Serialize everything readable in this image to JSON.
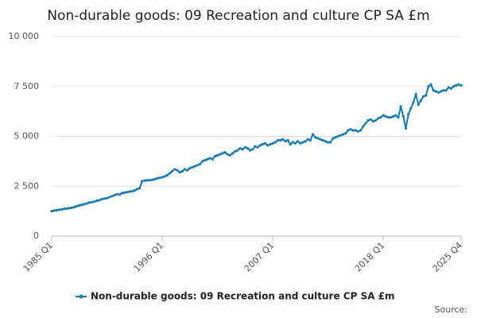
{
  "chart_data": {
    "type": "line",
    "title": "Non-durable goods: 09 Recreation and culture CP SA £m",
    "source": "Source:",
    "categories": [
      "1985 Q1",
      null,
      null,
      null,
      null,
      null,
      null,
      null,
      null,
      null,
      null,
      null,
      null,
      null,
      null,
      null,
      null,
      null,
      null,
      null,
      null,
      null,
      null,
      null,
      null,
      null,
      null,
      null,
      null,
      null,
      null,
      null,
      null,
      null,
      null,
      null,
      null,
      null,
      null,
      null,
      null,
      null,
      null,
      null,
      "1996 Q1",
      null,
      null,
      null,
      null,
      null,
      null,
      null,
      null,
      null,
      null,
      null,
      null,
      null,
      null,
      null,
      null,
      null,
      null,
      null,
      null,
      null,
      null,
      null,
      null,
      null,
      null,
      null,
      null,
      null,
      null,
      null,
      null,
      null,
      null,
      null,
      null,
      null,
      null,
      null,
      null,
      null,
      null,
      null,
      "2007 Q1",
      null,
      null,
      null,
      null,
      null,
      null,
      null,
      null,
      null,
      null,
      null,
      null,
      null,
      null,
      null,
      null,
      null,
      null,
      null,
      null,
      null,
      null,
      null,
      null,
      null,
      null,
      null,
      null,
      null,
      null,
      null,
      null,
      null,
      null,
      null,
      null,
      null,
      null,
      null,
      null,
      null,
      null,
      null,
      "2018 Q1",
      null,
      null,
      null,
      null,
      null,
      null,
      null,
      null,
      null,
      null,
      null,
      null,
      null,
      null,
      null,
      null,
      null,
      null,
      null,
      null,
      null,
      null,
      null,
      null,
      null,
      null,
      null,
      null,
      null,
      null,
      "2025 Q4"
    ],
    "series": [
      {
        "name": "Non-durable goods: 09 Recreation and culture CP SA £m",
        "color": "#0f7bbd",
        "values": [
          1250,
          1280,
          1300,
          1320,
          1340,
          1370,
          1380,
          1400,
          1420,
          1450,
          1500,
          1540,
          1570,
          1600,
          1640,
          1680,
          1700,
          1730,
          1780,
          1800,
          1850,
          1880,
          1900,
          1950,
          2000,
          2050,
          2100,
          2080,
          2150,
          2180,
          2200,
          2230,
          2250,
          2280,
          2350,
          2400,
          2750,
          2780,
          2800,
          2800,
          2820,
          2850,
          2900,
          2920,
          2950,
          3000,
          3050,
          3150,
          3250,
          3350,
          3300,
          3200,
          3250,
          3350,
          3300,
          3400,
          3450,
          3500,
          3550,
          3600,
          3750,
          3800,
          3850,
          3900,
          3850,
          4000,
          4050,
          4100,
          4150,
          4200,
          4100,
          4050,
          4150,
          4250,
          4300,
          4400,
          4350,
          4450,
          4400,
          4300,
          4350,
          4500,
          4450,
          4550,
          4600,
          4650,
          4550,
          4600,
          4650,
          4700,
          4800,
          4800,
          4850,
          4750,
          4800,
          4600,
          4700,
          4650,
          4750,
          4650,
          4700,
          4750,
          4850,
          4800,
          5100,
          4950,
          4900,
          4850,
          4800,
          4750,
          4700,
          4700,
          4900,
          4950,
          5000,
          5050,
          5100,
          5150,
          5300,
          5350,
          5300,
          5300,
          5250,
          5300,
          5500,
          5650,
          5800,
          5850,
          5750,
          5800,
          5900,
          5950,
          6050,
          6000,
          5950,
          5950,
          6000,
          6050,
          5950,
          6500,
          6000,
          5400,
          6100,
          6400,
          6700,
          7100,
          6600,
          6800,
          7000,
          7050,
          7500,
          7600,
          7300,
          7250,
          7200,
          7250,
          7300,
          7300,
          7450,
          7400,
          7500,
          7550,
          7600,
          7550
        ]
      }
    ],
    "ylim": [
      0,
      10000
    ],
    "yticks": [
      0,
      {
        "value": 2500,
        "label": "2 500"
      },
      {
        "value": 5000,
        "label": "5 000"
      },
      {
        "value": 7500,
        "label": "7 500"
      },
      {
        "value": 10000,
        "label": "10 000"
      }
    ],
    "grid": true
  }
}
